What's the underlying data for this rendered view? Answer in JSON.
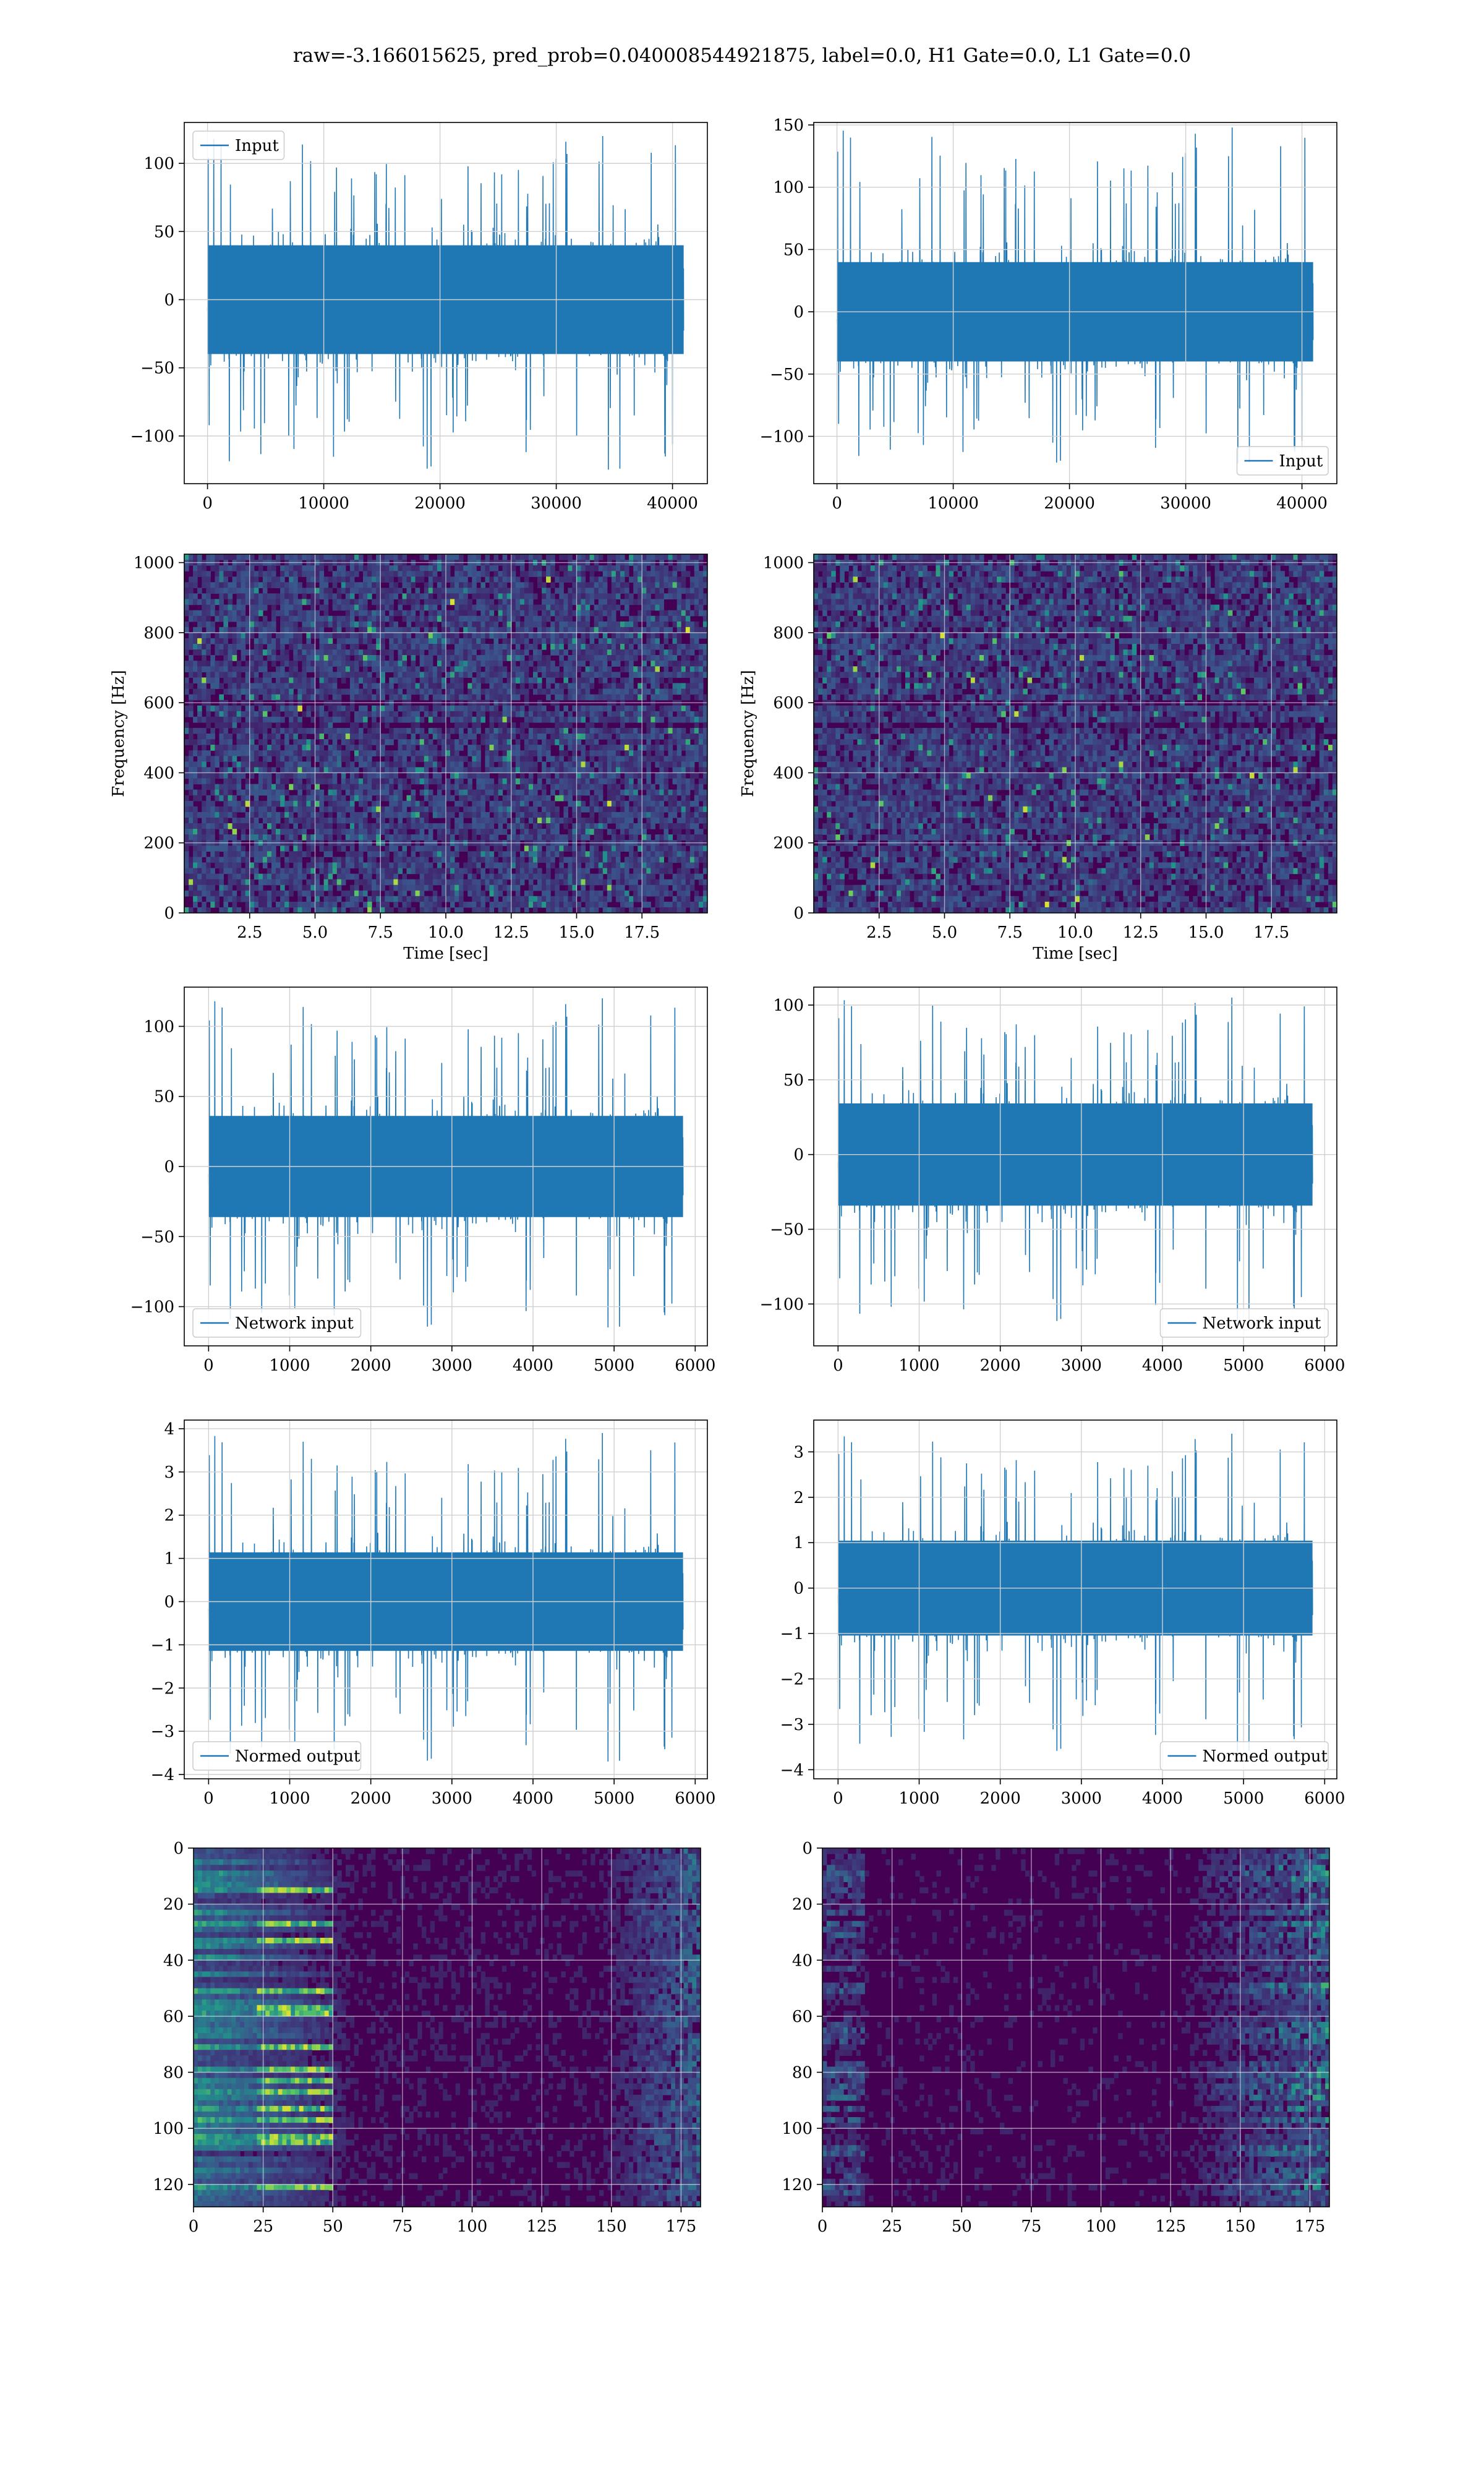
{
  "figure": {
    "suptitle": "raw=-3.166015625, pred_prob=0.040008544921875, label=0.0, H1 Gate=0.0, L1 Gate=0.0"
  },
  "colors": {
    "line": "#1f77b4",
    "grid": "#d0d0d0",
    "viridis_low": "#440154",
    "viridis_high": "#fde725"
  },
  "chart_data": [
    {
      "id": "p1",
      "type": "line",
      "style": "noise",
      "xlabel": "",
      "ylabel": "",
      "xlim": [
        -2000,
        43000
      ],
      "ylim": [
        -135,
        130
      ],
      "xticks": [
        0,
        10000,
        20000,
        30000,
        40000
      ],
      "yticks": [
        -100,
        -50,
        0,
        50,
        100
      ],
      "legend": {
        "label": "Input",
        "loc": "upper-left"
      },
      "series": [
        {
          "name": "Input",
          "x_range": [
            0,
            40960
          ],
          "band": [
            -42,
            42
          ],
          "peak_range": [
            -128,
            120
          ],
          "seed": 11
        }
      ]
    },
    {
      "id": "p2",
      "type": "line",
      "style": "noise",
      "xlabel": "",
      "ylabel": "",
      "xlim": [
        -2000,
        43000
      ],
      "ylim": [
        -138,
        152
      ],
      "xticks": [
        0,
        10000,
        20000,
        30000,
        40000
      ],
      "yticks": [
        -100,
        -50,
        0,
        50,
        100,
        150
      ],
      "legend": {
        "label": "Input",
        "loc": "lower-right"
      },
      "series": [
        {
          "name": "Input",
          "x_range": [
            0,
            40960
          ],
          "band": [
            -42,
            42
          ],
          "peak_range": [
            -125,
            148
          ],
          "seed": 23
        }
      ]
    },
    {
      "id": "p3",
      "type": "heatmap",
      "style": "spectrogram",
      "xlabel": "Time [sec]",
      "ylabel": "Frequency [Hz]",
      "xlim": [
        0,
        20
      ],
      "ylim": [
        0,
        1024
      ],
      "xticks": [
        2.5,
        5,
        7.5,
        10,
        12.5,
        15,
        17.5
      ],
      "xticklabels": [
        "2.5",
        "5.0",
        "7.5",
        "10.0",
        "12.5",
        "15.0",
        "17.5"
      ],
      "yticks": [
        0,
        200,
        400,
        600,
        800,
        1000
      ],
      "seed": 31
    },
    {
      "id": "p4",
      "type": "heatmap",
      "style": "spectrogram",
      "xlabel": "Time [sec]",
      "ylabel": "Frequency [Hz]",
      "xlim": [
        0,
        20
      ],
      "ylim": [
        0,
        1024
      ],
      "xticks": [
        2.5,
        5,
        7.5,
        10,
        12.5,
        15,
        17.5
      ],
      "xticklabels": [
        "2.5",
        "5.0",
        "7.5",
        "10.0",
        "12.5",
        "15.0",
        "17.5"
      ],
      "yticks": [
        0,
        200,
        400,
        600,
        800,
        1000
      ],
      "seed": 47
    },
    {
      "id": "p5",
      "type": "line",
      "style": "noise",
      "xlabel": "",
      "ylabel": "",
      "xlim": [
        -300,
        6150
      ],
      "ylim": [
        -128,
        128
      ],
      "xticks": [
        0,
        1000,
        2000,
        3000,
        4000,
        5000,
        6000
      ],
      "yticks": [
        -100,
        -50,
        0,
        50,
        100
      ],
      "legend": {
        "label": "Network input",
        "loc": "lower-left"
      },
      "series": [
        {
          "name": "Network input",
          "x_range": [
            0,
            5850
          ],
          "band": [
            -38,
            38
          ],
          "peak_range": [
            -118,
            120
          ],
          "seed": 53
        }
      ]
    },
    {
      "id": "p6",
      "type": "line",
      "style": "noise",
      "xlabel": "",
      "ylabel": "",
      "xlim": [
        -300,
        6150
      ],
      "ylim": [
        -128,
        112
      ],
      "xticks": [
        0,
        1000,
        2000,
        3000,
        4000,
        5000,
        6000
      ],
      "yticks": [
        -100,
        -50,
        0,
        50,
        100
      ],
      "legend": {
        "label": "Network input",
        "loc": "lower-right"
      },
      "series": [
        {
          "name": "Network input",
          "x_range": [
            0,
            5850
          ],
          "band": [
            -36,
            36
          ],
          "peak_range": [
            -115,
            105
          ],
          "seed": 67
        }
      ]
    },
    {
      "id": "p7",
      "type": "line",
      "style": "noise",
      "xlabel": "",
      "ylabel": "",
      "xlim": [
        -300,
        6150
      ],
      "ylim": [
        -4.1,
        4.2
      ],
      "xticks": [
        0,
        1000,
        2000,
        3000,
        4000,
        5000,
        6000
      ],
      "yticks": [
        -4,
        -3,
        -2,
        -1,
        0,
        1,
        2,
        3,
        4
      ],
      "legend": {
        "label": "Normed output",
        "loc": "lower-left"
      },
      "series": [
        {
          "name": "Normed output",
          "x_range": [
            0,
            5850
          ],
          "band": [
            -1.2,
            1.2
          ],
          "peak_range": [
            -3.8,
            3.9
          ],
          "seed": 79
        }
      ]
    },
    {
      "id": "p8",
      "type": "line",
      "style": "noise",
      "xlabel": "",
      "ylabel": "",
      "xlim": [
        -300,
        6150
      ],
      "ylim": [
        -4.2,
        3.7
      ],
      "xticks": [
        0,
        1000,
        2000,
        3000,
        4000,
        5000,
        6000
      ],
      "yticks": [
        -4,
        -3,
        -2,
        -1,
        0,
        1,
        2,
        3
      ],
      "legend": {
        "label": "Normed output",
        "loc": "lower-right"
      },
      "series": [
        {
          "name": "Normed output",
          "x_range": [
            0,
            5850
          ],
          "band": [
            -1.1,
            1.1
          ],
          "peak_range": [
            -3.7,
            3.4
          ],
          "seed": 83
        }
      ]
    },
    {
      "id": "p9",
      "type": "heatmap",
      "style": "features-left",
      "xlabel": "",
      "ylabel": "",
      "xlim": [
        0,
        182
      ],
      "ylim": [
        128,
        0
      ],
      "xticks": [
        0,
        25,
        50,
        75,
        100,
        125,
        150,
        175
      ],
      "yticks": [
        0,
        20,
        40,
        60,
        80,
        100,
        120
      ],
      "seed": 97
    },
    {
      "id": "p10",
      "type": "heatmap",
      "style": "features-right",
      "xlabel": "",
      "ylabel": "",
      "xlim": [
        0,
        182
      ],
      "ylim": [
        128,
        0
      ],
      "xticks": [
        0,
        25,
        50,
        75,
        100,
        125,
        150,
        175
      ],
      "yticks": [
        0,
        20,
        40,
        60,
        80,
        100,
        120
      ],
      "seed": 101
    }
  ]
}
